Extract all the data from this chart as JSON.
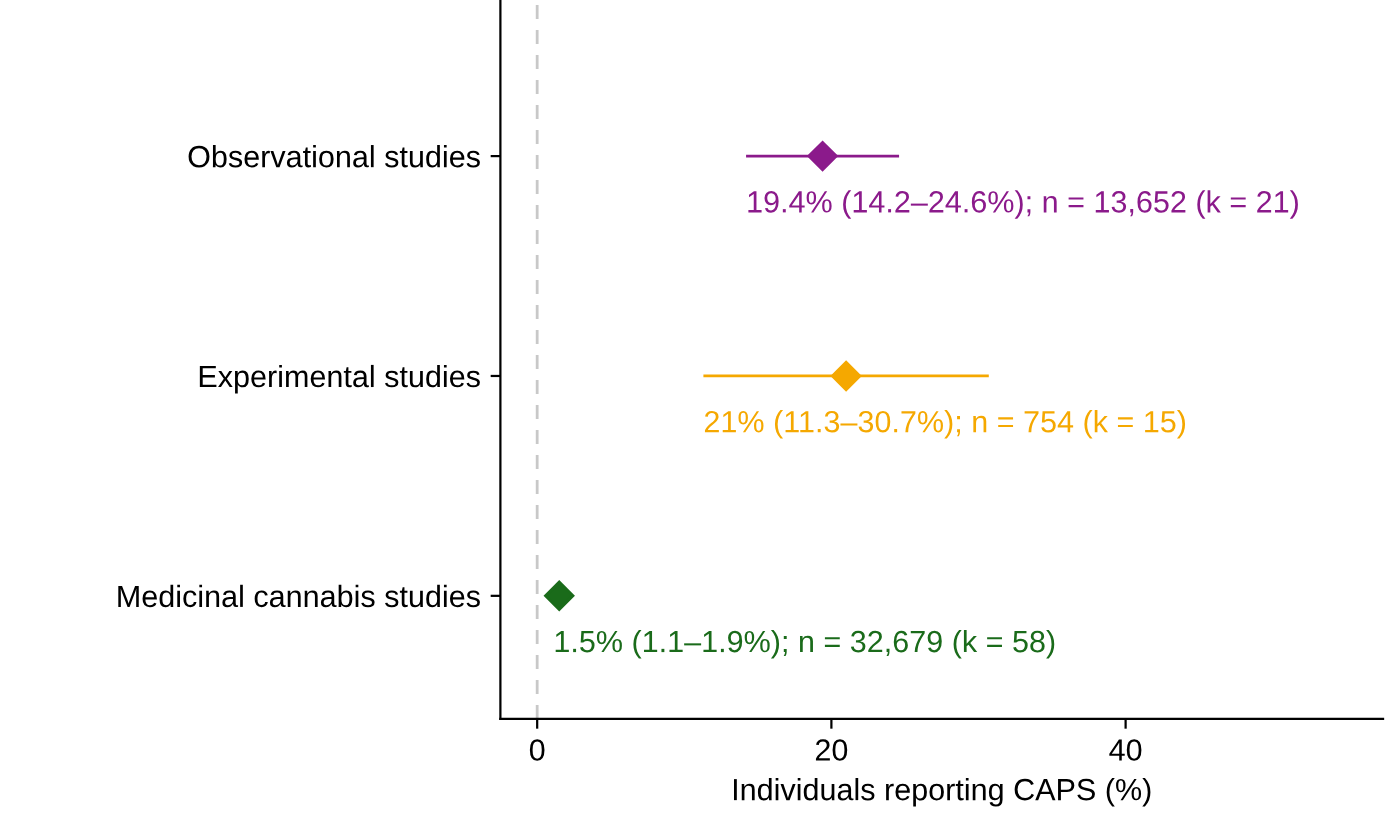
{
  "chart_data": {
    "type": "scatter",
    "orientation": "horizontal",
    "categories": [
      "Observational studies",
      "Experimental studies",
      "Medicinal cannabis studies"
    ],
    "values": [
      19.4,
      21,
      1.5
    ],
    "errors": [
      [
        14.2,
        24.6
      ],
      [
        11.3,
        30.7
      ],
      [
        1.1,
        1.9
      ]
    ],
    "colors": [
      "#8b1a8b",
      "#f5a800",
      "#1a6b1a"
    ],
    "value_labels": [
      "19.4% (14.2–24.6%); n = 13,652 (k = 21)",
      "21% (11.3–30.7%); n = 754 (k = 15)",
      "1.5% (1.1–1.9%); n = 32,679 (k = 58)"
    ],
    "marker": "diamond",
    "xlim": [
      -2.5,
      57.5
    ],
    "xticks": [
      0,
      20,
      40
    ],
    "xlabel": "Individuals reporting CAPS (%)",
    "ref_lines": [
      {
        "axis": "x",
        "value": 0,
        "color": "#c8c8c8",
        "line_style": "dashed"
      }
    ],
    "grid": false,
    "legend": false
  }
}
